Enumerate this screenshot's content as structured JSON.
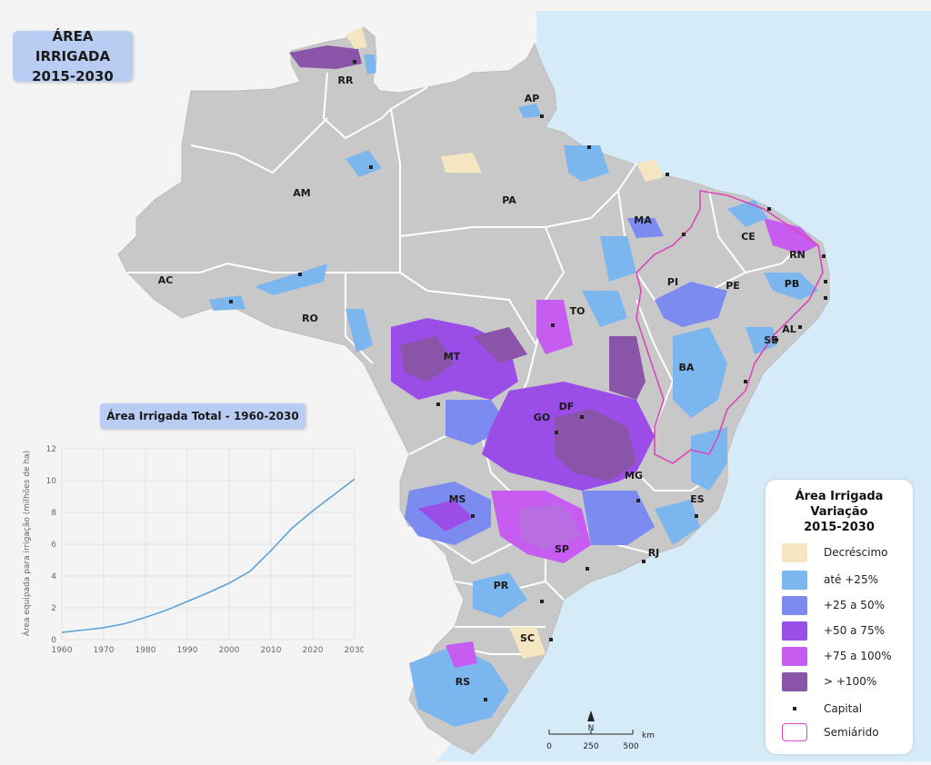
{
  "title": {
    "line1": "ÁREA IRRIGADA",
    "line2": "2015-2030"
  },
  "states": [
    "RR",
    "AP",
    "AM",
    "PA",
    "MA",
    "CE",
    "RN",
    "PB",
    "PI",
    "PE",
    "AL",
    "SE",
    "AC",
    "RO",
    "TO",
    "MT",
    "BA",
    "DF",
    "GO",
    "MG",
    "ES",
    "MS",
    "SP",
    "RJ",
    "PR",
    "SC",
    "RS"
  ],
  "chart": {
    "title": "Área Irrigada Total - 1960-2030",
    "ylabel": "Área equipada para irrigação (milhões de ha)"
  },
  "chart_data": {
    "type": "line",
    "title": "Área Irrigada Total - 1960-2030",
    "xlabel": "",
    "ylabel": "Área equipada para irrigação (milhões de ha)",
    "x": [
      1960,
      1965,
      1970,
      1975,
      1980,
      1985,
      1990,
      1995,
      2000,
      2005,
      2010,
      2015,
      2020,
      2025,
      2030
    ],
    "series": [
      {
        "values": [
          0.45,
          0.6,
          0.75,
          1.0,
          1.4,
          1.85,
          2.4,
          2.95,
          3.55,
          4.3,
          5.6,
          7.0,
          8.1,
          9.1,
          10.1
        ]
      }
    ],
    "xticks": [
      1960,
      1970,
      1980,
      1990,
      2000,
      2010,
      2020,
      2030
    ],
    "yticks": [
      0,
      2,
      4,
      6,
      8,
      10,
      12
    ],
    "xlim": [
      1960,
      2030
    ],
    "ylim": [
      0,
      12
    ],
    "grid": true,
    "line_color": "#5ea3d6"
  },
  "legend": {
    "title_lines": [
      "Área Irrigada",
      "Variação",
      "2015-2030"
    ],
    "items": [
      {
        "label": "Decréscimo",
        "color": "#f5e6c2",
        "kind": "swatch"
      },
      {
        "label": "até +25%",
        "color": "#7cb6ee",
        "kind": "swatch"
      },
      {
        "label": "+25 a 50%",
        "color": "#7b8bf0",
        "kind": "swatch"
      },
      {
        "label": "+50 a 75%",
        "color": "#9b4de8",
        "kind": "swatch"
      },
      {
        "label": "+75 a 100%",
        "color": "#c65df0",
        "kind": "swatch"
      },
      {
        "label": "> +100%",
        "color": "#8a55a8",
        "kind": "swatch"
      },
      {
        "label": "Capital",
        "color": "#222222",
        "kind": "dot"
      },
      {
        "label": "Semiárido",
        "color": "#d947b8",
        "kind": "outline"
      }
    ]
  },
  "scale": {
    "ticks": [
      "0",
      "250",
      "500"
    ],
    "unit": "km",
    "north": "N"
  },
  "colors": {
    "land": "#c8c8c8",
    "ocean": "#d6ebf8",
    "border": "#ffffff",
    "semiarid": "#d947b8"
  }
}
